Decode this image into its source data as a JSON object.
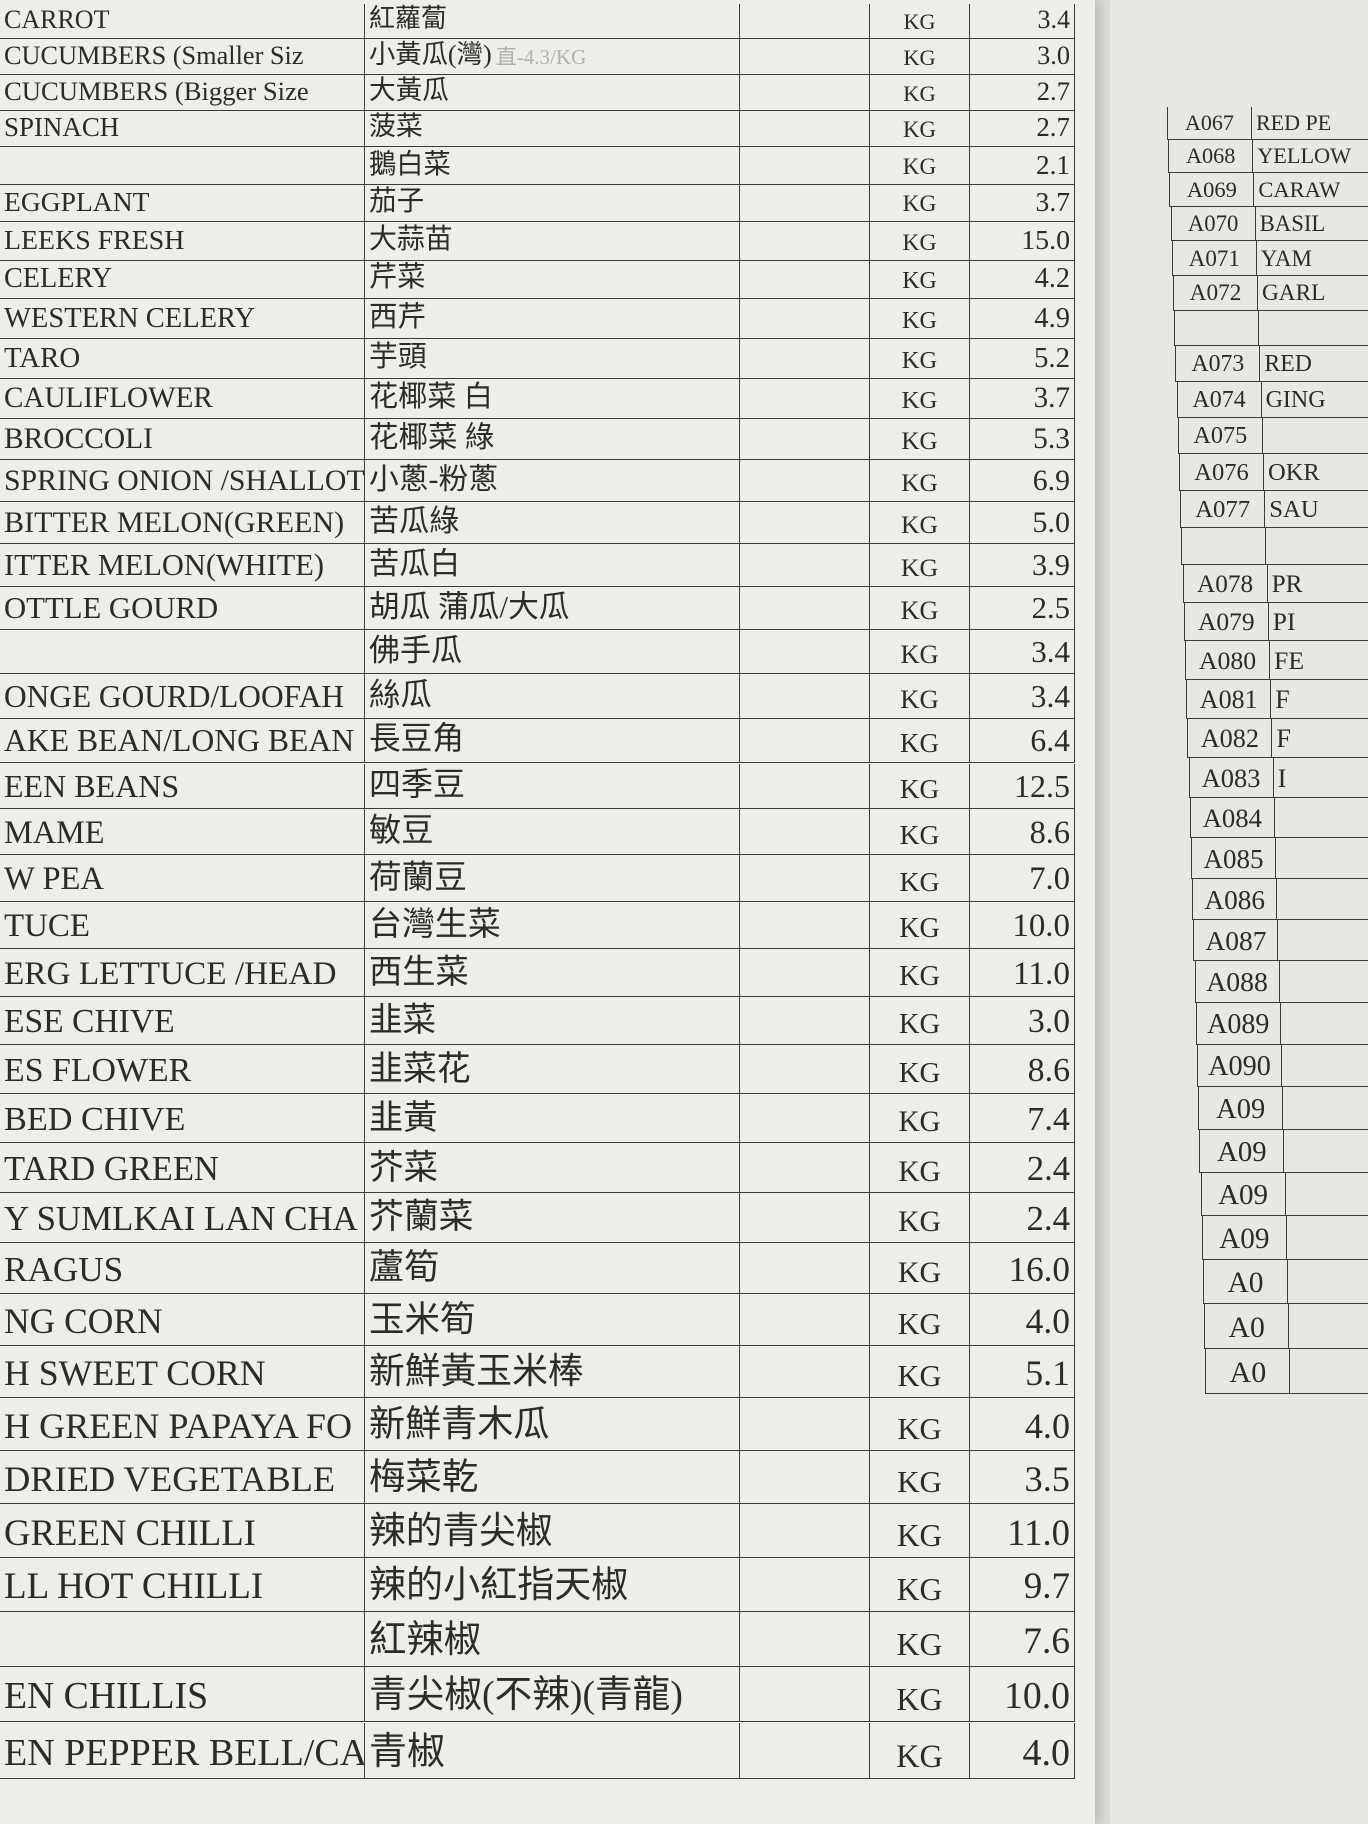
{
  "left_table": {
    "rows": [
      {
        "en": "CARROT",
        "zh": "紅蘿蔔",
        "unit": "KG",
        "price": "3.4"
      },
      {
        "en": "CUCUMBERS   (Smaller Siz",
        "zh": "小黃瓜(灣)",
        "note": "直-4.3/KG",
        "unit": "KG",
        "price": "3.0"
      },
      {
        "en": "CUCUMBERS   (Bigger Size",
        "zh": "大黃瓜",
        "unit": "KG",
        "price": "2.7"
      },
      {
        "en": "SPINACH",
        "zh": "菠菜",
        "unit": "KG",
        "price": "2.7"
      },
      {
        "en": null,
        "zh": "鵝白菜",
        "unit": "KG",
        "price": "2.1"
      },
      {
        "en": "EGGPLANT",
        "zh": "茄子",
        "unit": "KG",
        "price": "3.7"
      },
      {
        "en": "LEEKS FRESH",
        "zh": "大蒜苗",
        "unit": "KG",
        "price": "15.0"
      },
      {
        "en": "CELERY",
        "zh": "芹菜",
        "unit": "KG",
        "price": "4.2"
      },
      {
        "en": "WESTERN CELERY",
        "zh": "西芹",
        "unit": "KG",
        "price": "4.9"
      },
      {
        "en": "TARO",
        "zh": "芋頭",
        "unit": "KG",
        "price": "5.2"
      },
      {
        "en": "CAULIFLOWER",
        "zh": "花椰菜 白",
        "unit": "KG",
        "price": "3.7"
      },
      {
        "en": "BROCCOLI",
        "zh": "花椰菜 綠",
        "unit": "KG",
        "price": "5.3"
      },
      {
        "en": "SPRING ONION /SHALLOT",
        "zh": "小蔥-粉蔥",
        "unit": "KG",
        "price": "6.9"
      },
      {
        "en": "BITTER MELON(GREEN)",
        "zh": "苦瓜綠",
        "unit": "KG",
        "price": "5.0"
      },
      {
        "en": "ITTER MELON(WHITE)",
        "zh": "苦瓜白",
        "unit": "KG",
        "price": "3.9"
      },
      {
        "en": "OTTLE GOURD",
        "zh": "胡瓜 蒲瓜/大瓜",
        "unit": "KG",
        "price": "2.5"
      },
      {
        "en": null,
        "zh": "佛手瓜",
        "unit": "KG",
        "price": "3.4"
      },
      {
        "en": "ONGE GOURD/LOOFAH",
        "zh": "絲瓜",
        "unit": "KG",
        "price": "3.4"
      },
      {
        "en": "AKE BEAN/LONG BEAN",
        "zh": "長豆角",
        "unit": "KG",
        "price": "6.4"
      },
      {
        "en": "EEN BEANS",
        "zh": "四季豆",
        "unit": "KG",
        "price": "12.5"
      },
      {
        "en": "MAME",
        "zh": "敏豆",
        "unit": "KG",
        "price": "8.6"
      },
      {
        "en": "W PEA",
        "zh": "荷蘭豆",
        "unit": "KG",
        "price": "7.0"
      },
      {
        "en": "TUCE",
        "zh": "台灣生菜",
        "unit": "KG",
        "price": "10.0"
      },
      {
        "en": "ERG LETTUCE /HEAD",
        "zh": "西生菜",
        "unit": "KG",
        "price": "11.0"
      },
      {
        "en": "ESE CHIVE",
        "zh": "韭菜",
        "unit": "KG",
        "price": "3.0"
      },
      {
        "en": "ES FLOWER",
        "zh": "韭菜花",
        "unit": "KG",
        "price": "8.6"
      },
      {
        "en": "BED CHIVE",
        "zh": "韭黃",
        "unit": "KG",
        "price": "7.4"
      },
      {
        "en": "TARD  GREEN",
        "zh": "芥菜",
        "unit": "KG",
        "price": "2.4"
      },
      {
        "en": "Y SUMLKAI LAN CHA",
        "zh": "芥蘭菜",
        "unit": "KG",
        "price": "2.4"
      },
      {
        "en": "RAGUS",
        "zh": "蘆筍",
        "unit": "KG",
        "price": "16.0"
      },
      {
        "en": "NG CORN",
        "zh": "玉米筍",
        "unit": "KG",
        "price": "4.0"
      },
      {
        "en": "H SWEET CORN",
        "zh": "新鮮黃玉米棒",
        "unit": "KG",
        "price": "5.1"
      },
      {
        "en": "H GREEN PAPAYA FO",
        "zh": "新鮮青木瓜",
        "unit": "KG",
        "price": "4.0"
      },
      {
        "en": "DRIED VEGETABLE",
        "zh": "梅菜乾",
        "unit": "KG",
        "price": "3.5"
      },
      {
        "en": "GREEN CHILLI",
        "zh": "辣的青尖椒",
        "unit": "KG",
        "price": "11.0"
      },
      {
        "en": "LL HOT CHILLI",
        "zh": "辣的小紅指天椒",
        "unit": "KG",
        "price": "9.7"
      },
      {
        "en": null,
        "zh": "紅辣椒",
        "unit": "KG",
        "price": "7.6"
      },
      {
        "en": "EN CHILLIS",
        "zh": "青尖椒(不辣)(青龍)",
        "unit": "KG",
        "price": "10.0"
      },
      {
        "en": "EN PEPPER BELL/CAP",
        "zh": "青椒",
        "unit": "KG",
        "price": "4.0"
      }
    ]
  },
  "right_table": {
    "rows": [
      {
        "code": "A067",
        "name": "RED PE"
      },
      {
        "code": "A068",
        "name": "YELLOW"
      },
      {
        "code": "A069",
        "name": "CARAW"
      },
      {
        "code": "A070",
        "name": "BASIL"
      },
      {
        "code": "A071",
        "name": "YAM"
      },
      {
        "code": "A072",
        "name": "GARL"
      },
      {
        "code": null,
        "name": null
      },
      {
        "code": "A073",
        "name": "RED"
      },
      {
        "code": "A074",
        "name": "GING"
      },
      {
        "code": "A075",
        "name": null
      },
      {
        "code": "A076",
        "name": "OKR"
      },
      {
        "code": "A077",
        "name": "SAU"
      },
      {
        "code": null,
        "name": null
      },
      {
        "code": "A078",
        "name": "PR"
      },
      {
        "code": "A079",
        "name": "PI"
      },
      {
        "code": "A080",
        "name": "FE"
      },
      {
        "code": "A081",
        "name": "F"
      },
      {
        "code": "A082",
        "name": "F"
      },
      {
        "code": "A083",
        "name": "I"
      },
      {
        "code": "A084",
        "name": null
      },
      {
        "code": "A085",
        "name": null
      },
      {
        "code": "A086",
        "name": null
      },
      {
        "code": "A087",
        "name": null
      },
      {
        "code": "A088",
        "name": null
      },
      {
        "code": "A089",
        "name": null
      },
      {
        "code": "A090",
        "name": null
      },
      {
        "code": "A09",
        "name": null
      },
      {
        "code": "A09",
        "name": null
      },
      {
        "code": "A09",
        "name": null
      },
      {
        "code": "A09",
        "name": null
      },
      {
        "code": "A0",
        "name": null
      },
      {
        "code": "A0",
        "name": null
      },
      {
        "code": "A0",
        "name": null
      }
    ]
  }
}
